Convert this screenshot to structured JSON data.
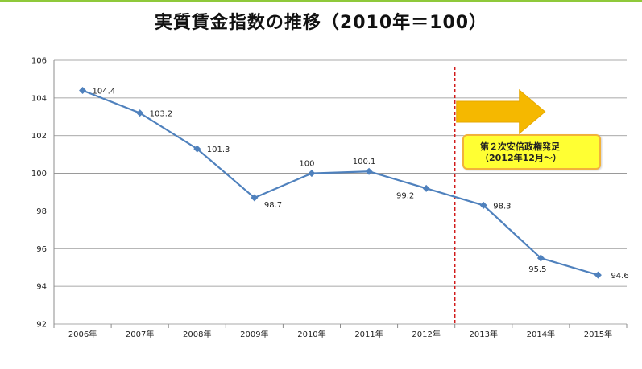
{
  "title": "実質賃金指数の推移（2010年＝100）",
  "annotation": {
    "line1": "第２次安倍政権発足",
    "line2": "（2012年12月～）"
  },
  "colors": {
    "series": "#4f81bd",
    "divider": "#d11a1a",
    "arrow": "#f5b800",
    "callout_fill": "#ffff33",
    "callout_border": "#f2b23a"
  },
  "chart_data": {
    "type": "line",
    "title": "実質賃金指数の推移（2010年＝100）",
    "categories": [
      "2006年",
      "2007年",
      "2008年",
      "2009年",
      "2010年",
      "2011年",
      "2012年",
      "2013年",
      "2014年",
      "2015年"
    ],
    "series": [
      {
        "values": [
          104.4,
          103.2,
          101.3,
          98.7,
          100,
          100.1,
          99.2,
          98.3,
          95.5,
          94.6
        ]
      }
    ],
    "data_labels": [
      "104.4",
      "103.2",
      "101.3",
      "98.7",
      "100",
      "100.1",
      "99.2",
      "98.3",
      "95.5",
      "94.6"
    ],
    "ylim": [
      92,
      106
    ],
    "yticks": [
      92,
      94,
      96,
      98,
      100,
      102,
      104,
      106
    ],
    "grid": true,
    "legend": "none",
    "marker": "diamond",
    "divider_between": [
      "2012年",
      "2013年"
    ],
    "arrow_direction": "right"
  }
}
